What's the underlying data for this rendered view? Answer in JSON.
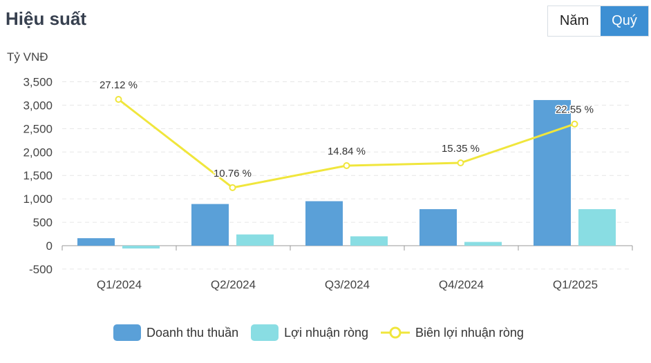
{
  "header": {
    "title": "Hiệu suất",
    "toggle_year": "Năm",
    "toggle_quarter": "Quý",
    "active": "Quý"
  },
  "colors": {
    "revenue": "#5aa0d8",
    "profit": "#89dde3",
    "margin": "#f0e63c",
    "toggle_active": "#3d8fd3"
  },
  "chart_data": {
    "type": "bar",
    "ylabel": "Tỷ VNĐ",
    "categories": [
      "Q1/2024",
      "Q2/2024",
      "Q3/2024",
      "Q4/2024",
      "Q1/2025"
    ],
    "ylim": [
      -500,
      3500
    ],
    "yticks": [
      "3,500",
      "3,000",
      "2,500",
      "2,000",
      "1,500",
      "1,000",
      "500",
      "0",
      "-500"
    ],
    "ytick_values": [
      3500,
      3000,
      2500,
      2000,
      1500,
      1000,
      500,
      0,
      -500
    ],
    "grid": true,
    "legend_position": "bottom",
    "series": [
      {
        "name": "Doanh thu thuần",
        "kind": "bar",
        "values": [
          160,
          890,
          950,
          780,
          3110
        ]
      },
      {
        "name": "Lợi nhuận ròng",
        "kind": "bar",
        "values": [
          -60,
          240,
          200,
          80,
          780
        ]
      },
      {
        "name": "Biên lợi nhuận ròng",
        "kind": "line",
        "values": [
          27.12,
          10.76,
          14.84,
          15.35,
          22.55
        ],
        "labels": [
          "27.12 %",
          "10.76 %",
          "14.84 %",
          "15.35 %",
          "22.55 %"
        ]
      }
    ]
  }
}
